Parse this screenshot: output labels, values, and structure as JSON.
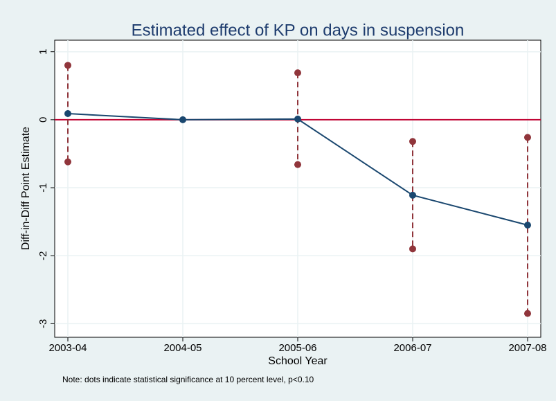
{
  "chart_data": {
    "type": "line",
    "title": "Estimated effect of KP on days in suspension",
    "x_label": "School Year",
    "y_label": "Diff-in-Diff Point Estimate",
    "note": "Note: dots indicate statistical significance at 10 percent level, p<0.10",
    "categories": [
      "2003-04",
      "2004-05",
      "2005-06",
      "2006-07",
      "2007-08"
    ],
    "values": [
      0.09,
      0,
      0.01,
      -1.11,
      -1.55
    ],
    "ci_upper": [
      0.8,
      null,
      0.69,
      -0.32,
      -0.26
    ],
    "ci_lower": [
      -0.62,
      null,
      -0.66,
      -1.9,
      -2.85
    ],
    "color": "#1a476f",
    "ci_color": "#90353b",
    "reference_line": 0,
    "reference_color": "#c10534",
    "ylim": [
      -3.2,
      1.17
    ],
    "yticks": [
      -3,
      -2,
      -1,
      0,
      1
    ],
    "grid": true
  }
}
